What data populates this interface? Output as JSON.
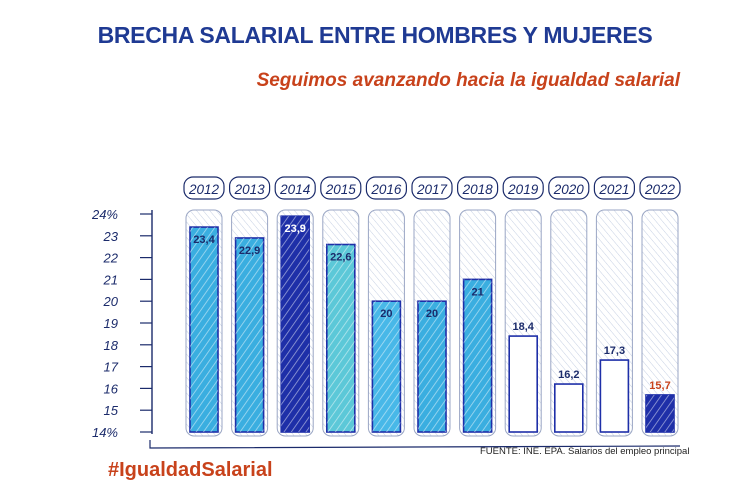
{
  "chart_data": {
    "type": "bar",
    "title": "BRECHA SALARIAL ENTRE HOMBRES Y MUJERES",
    "subtitle": "Seguimos avanzando hacia la igualdad salarial",
    "categories": [
      "2012",
      "2013",
      "2014",
      "2015",
      "2016",
      "2017",
      "2018",
      "2019",
      "2020",
      "2021",
      "2022"
    ],
    "values": [
      23.4,
      22.9,
      23.9,
      22.6,
      20,
      20,
      21,
      18.4,
      16.2,
      17.3,
      15.7
    ],
    "value_labels": [
      "23,4",
      "22,9",
      "23,9",
      "22,6",
      "20",
      "20",
      "21",
      "18,4",
      "16,2",
      "17,3",
      "15,7"
    ],
    "y_ticks": [
      "14%",
      "15",
      "16",
      "17",
      "18",
      "19",
      "20",
      "21",
      "22",
      "23",
      "24%"
    ],
    "ylim": [
      14,
      24
    ],
    "bar_colors": [
      "#3aaee0",
      "#3aaee0",
      "#1e2fa8",
      "#5cc8d8",
      "#48b8e8",
      "#3aaee0",
      "#3aaee0",
      "#ffffff",
      "#ffffff",
      "#ffffff",
      "#1e2fa8"
    ],
    "label_colors": [
      "#1b2b6b",
      "#1b2b6b",
      "#ffffff",
      "#1b2b6b",
      "#1b2b6b",
      "#1b2b6b",
      "#1b2b6b",
      "#1b2b6b",
      "#1b2b6b",
      "#1b2b6b",
      "#c8421b"
    ],
    "grid": false
  },
  "source": "FUENTE: INE. EPA. Salarios del empleo principal",
  "hashtag": "#IgualdadSalarial"
}
